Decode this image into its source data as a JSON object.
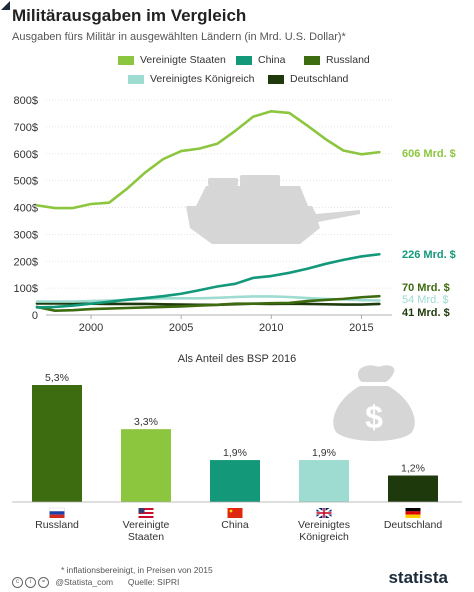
{
  "header": {
    "title": "Militärausgaben im Vergleich",
    "subtitle": "Ausgaben fürs Militär in ausgewählten Ländern (in Mrd. U.S. Dollar)*"
  },
  "colors": {
    "usa": "#8cc63f",
    "china": "#13987a",
    "russia": "#3d6b10",
    "uk": "#9edbd0",
    "germany": "#1e3a0c"
  },
  "legend": [
    {
      "key": "usa",
      "label": "Vereinigte Staaten"
    },
    {
      "key": "china",
      "label": "China"
    },
    {
      "key": "russia",
      "label": "Russland"
    },
    {
      "key": "uk",
      "label": "Vereinigtes Königreich"
    },
    {
      "key": "germany",
      "label": "Deutschland"
    }
  ],
  "chart_data": [
    {
      "type": "line",
      "x": [
        1997,
        1998,
        1999,
        2000,
        2001,
        2002,
        2003,
        2004,
        2005,
        2006,
        2007,
        2008,
        2009,
        2010,
        2011,
        2012,
        2013,
        2014,
        2015,
        2016
      ],
      "ylim": [
        0,
        800
      ],
      "y_ticks": [
        "0",
        "100$",
        "200$",
        "300$",
        "400$",
        "500$",
        "600$",
        "700$",
        "800$"
      ],
      "x_ticks": [
        "2000",
        "2005",
        "2010",
        "2015"
      ],
      "grid": true,
      "series": [
        {
          "key": "usa",
          "name": "Vereinigte Staaten",
          "end_label": "606 Mrd. $",
          "values": [
            408,
            398,
            398,
            413,
            418,
            470,
            530,
            580,
            610,
            619,
            637,
            685,
            738,
            758,
            752,
            705,
            655,
            612,
            598,
            606
          ]
        },
        {
          "key": "china",
          "name": "China",
          "end_label": "226 Mrd. $",
          "values": [
            28,
            30,
            35,
            42,
            49,
            57,
            63,
            70,
            79,
            92,
            106,
            116,
            138,
            145,
            157,
            172,
            190,
            205,
            218,
            226
          ]
        },
        {
          "key": "russia",
          "name": "Russland",
          "end_label": "70 Mrd. $",
          "values": [
            30,
            16,
            18,
            22,
            24,
            26,
            28,
            30,
            32,
            35,
            38,
            42,
            42,
            44,
            45,
            52,
            56,
            60,
            66,
            70
          ]
        },
        {
          "key": "uk",
          "name": "Vereinigtes Königreich",
          "end_label": "54 Mrd. $",
          "values": [
            50,
            50,
            50,
            52,
            54,
            56,
            60,
            62,
            62,
            62,
            64,
            67,
            69,
            69,
            67,
            63,
            60,
            58,
            55,
            54
          ]
        },
        {
          "key": "germany",
          "name": "Deutschland",
          "end_label": "41 Mrd. $",
          "values": [
            43,
            43,
            43,
            42,
            41,
            41,
            41,
            40,
            39,
            38,
            38,
            40,
            42,
            41,
            42,
            41,
            40,
            39,
            39,
            41
          ]
        }
      ]
    },
    {
      "type": "bar",
      "title": "Als Anteil des BSP 2016",
      "ylim": [
        0,
        5.3
      ],
      "categories": [
        "Russland",
        "Vereinigte Staaten",
        "China",
        "Vereinigtes Königreich",
        "Deutschland"
      ],
      "category_lines": [
        [
          "Russland"
        ],
        [
          "Vereinigte",
          "Staaten"
        ],
        [
          "China"
        ],
        [
          "Vereinigtes",
          "Königreich"
        ],
        [
          "Deutschland"
        ]
      ],
      "keys": [
        "russia",
        "usa",
        "china",
        "uk",
        "germany"
      ],
      "values": [
        5.3,
        3.3,
        1.9,
        1.9,
        1.2
      ],
      "value_labels": [
        "5,3%",
        "3,3%",
        "1,9%",
        "1,9%",
        "1,2%"
      ]
    }
  ],
  "footer": {
    "copyright": "@Statista_com",
    "footnote": "* inflationsbereinigt, in Preisen von 2015",
    "source": "Quelle: SIPRI",
    "brand": "statista"
  }
}
